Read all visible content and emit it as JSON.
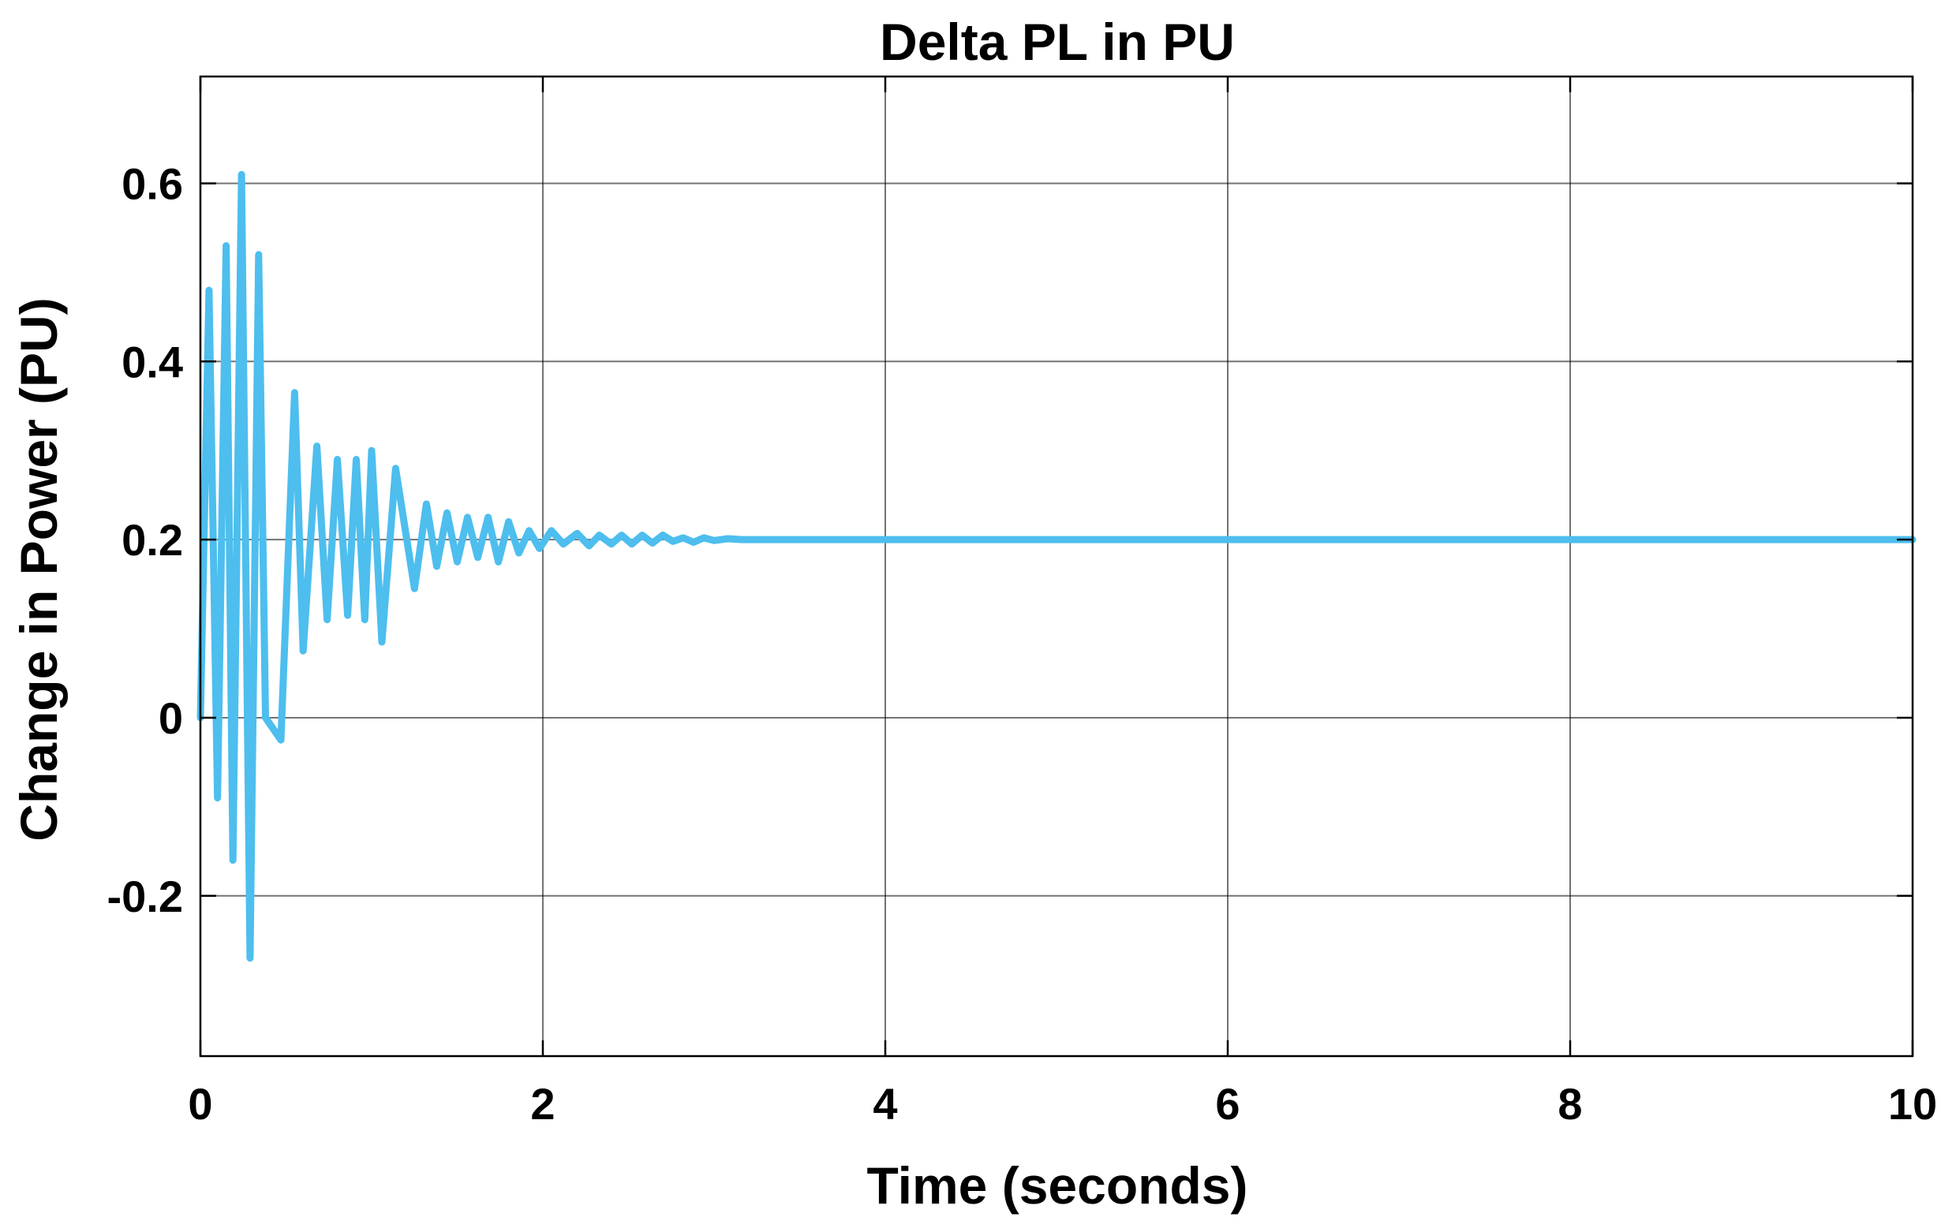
{
  "chart_data": {
    "type": "line",
    "title": "Delta PL in PU",
    "xlabel": "Time (seconds)",
    "ylabel": "Change in Power (PU)",
    "xlim": [
      0,
      10
    ],
    "ylim": [
      -0.38,
      0.72
    ],
    "xticks": [
      0,
      2,
      4,
      6,
      8,
      10
    ],
    "xtick_labels": [
      "0",
      "2",
      "4",
      "6",
      "8",
      "10"
    ],
    "yticks": [
      -0.2,
      0,
      0.2,
      0.4,
      0.6
    ],
    "ytick_labels": [
      "-0.2",
      "0",
      "0.2",
      "0.4",
      "0.6"
    ],
    "grid": true,
    "legend": "none",
    "series": [
      {
        "color": "#4dbeee",
        "x": [
          0,
          0.05,
          0.1,
          0.15,
          0.19,
          0.24,
          0.29,
          0.34,
          0.38,
          0.47,
          0.55,
          0.6,
          0.68,
          0.74,
          0.8,
          0.86,
          0.91,
          0.96,
          1.0,
          1.06,
          1.14,
          1.25,
          1.32,
          1.38,
          1.44,
          1.5,
          1.56,
          1.62,
          1.68,
          1.74,
          1.8,
          1.86,
          1.92,
          1.98,
          2.05,
          2.12,
          2.2,
          2.27,
          2.33,
          2.4,
          2.46,
          2.52,
          2.58,
          2.64,
          2.7,
          2.76,
          2.82,
          2.88,
          2.94,
          3.0,
          3.08,
          3.16,
          3.3,
          3.5,
          4.0,
          5.0,
          6.0,
          7.0,
          8.0,
          9.0,
          10.0
        ],
        "y": [
          0.0,
          0.48,
          -0.09,
          0.53,
          -0.16,
          0.61,
          -0.27,
          0.52,
          0.0,
          -0.025,
          0.365,
          0.075,
          0.305,
          0.11,
          0.29,
          0.115,
          0.29,
          0.11,
          0.3,
          0.085,
          0.28,
          0.145,
          0.24,
          0.17,
          0.23,
          0.175,
          0.225,
          0.18,
          0.225,
          0.175,
          0.22,
          0.185,
          0.21,
          0.19,
          0.21,
          0.195,
          0.207,
          0.193,
          0.205,
          0.195,
          0.205,
          0.195,
          0.205,
          0.196,
          0.205,
          0.198,
          0.202,
          0.197,
          0.202,
          0.199,
          0.201,
          0.2,
          0.2,
          0.2,
          0.2,
          0.2,
          0.2,
          0.2,
          0.2,
          0.2,
          0.2
        ]
      }
    ]
  }
}
